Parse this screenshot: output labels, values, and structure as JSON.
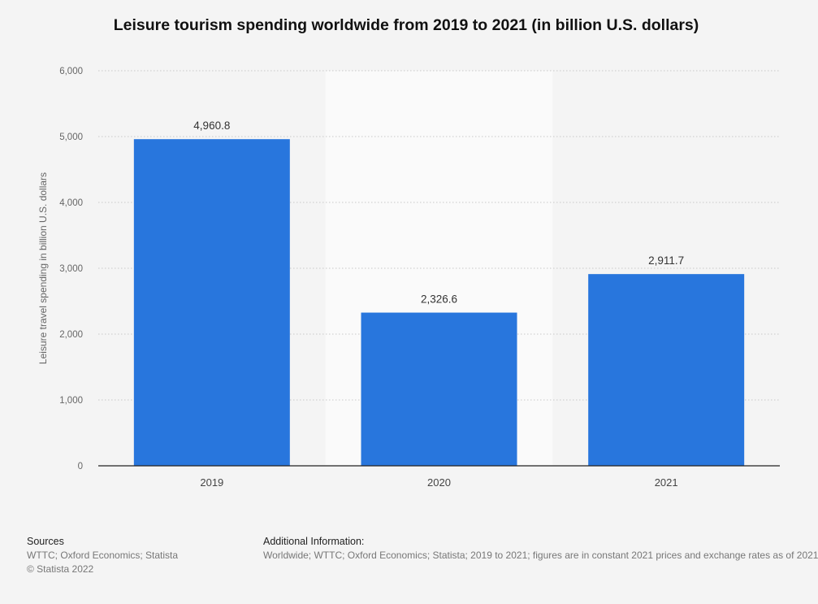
{
  "chart_data": {
    "type": "bar",
    "title": "Leisure tourism spending worldwide from 2019 to 2021 (in billion U.S. dollars)",
    "xlabel": "",
    "ylabel": "Leisure travel spending in billion U.S. dollars",
    "categories": [
      "2019",
      "2020",
      "2021"
    ],
    "values": [
      4960.8,
      2326.6,
      2911.7
    ],
    "value_labels": [
      "4,960.8",
      "2,326.6",
      "2,911.7"
    ],
    "ylim": [
      0,
      6000
    ],
    "yticks": [
      0,
      1000,
      2000,
      3000,
      4000,
      5000,
      6000
    ],
    "ytick_labels": [
      "0",
      "1,000",
      "2,000",
      "3,000",
      "4,000",
      "5,000",
      "6,000"
    ],
    "grid": true,
    "highlighted_category": "2020",
    "bar_color": "#2876dd"
  },
  "footer": {
    "sources_heading": "Sources",
    "sources_line1": "WTTC; Oxford Economics; Statista",
    "copyright": "© Statista 2022",
    "additional_heading": "Additional Information:",
    "additional_text": "Worldwide; WTTC; Oxford Economics; Statista; 2019 to 2021; figures are in constant 2021 prices and exchange rates as of 2021"
  }
}
